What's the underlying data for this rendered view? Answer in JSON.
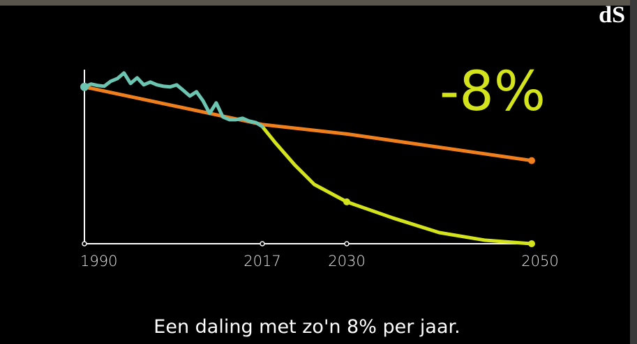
{
  "logo": "dS",
  "caption": "Een daling met zo'n 8% per jaar.",
  "chart_data": {
    "type": "line",
    "annotation": "-8%",
    "xlim": [
      1990,
      2050
    ],
    "xticks": [
      1990,
      2017,
      2030,
      2050
    ],
    "ylim": [
      0,
      111
    ],
    "series": [
      {
        "color": "#f07f1e",
        "x": [
          1990,
          2017,
          2030,
          2050
        ],
        "values": [
          100,
          76,
          70,
          53
        ]
      },
      {
        "color": "#d4e41c",
        "x": [
          2017,
          2019,
          2022,
          2025,
          2030,
          2035,
          2040,
          2045,
          2050
        ],
        "values": [
          74.7,
          64.4,
          50.2,
          37.8,
          26.7,
          16.4,
          7.1,
          2.2,
          0
        ]
      },
      {
        "color": "#6cc5b0",
        "x": [
          1990,
          1991,
          1992,
          1993,
          1994,
          1995,
          1996,
          1997,
          1998,
          1999,
          2000,
          2001,
          2002,
          2003,
          2004,
          2005,
          2006,
          2007,
          2008,
          2009,
          2010,
          2011,
          2012,
          2013,
          2014,
          2015,
          2016,
          2017
        ],
        "values": [
          100,
          101.8,
          100.9,
          100.4,
          103.6,
          105.3,
          108.9,
          102.2,
          105.8,
          101.3,
          103.1,
          101.3,
          100.4,
          100,
          101.3,
          97.8,
          94.2,
          96.9,
          91.1,
          83.1,
          89.8,
          80.9,
          79.1,
          79.1,
          80,
          78.2,
          77.3,
          74.7
        ]
      }
    ]
  }
}
